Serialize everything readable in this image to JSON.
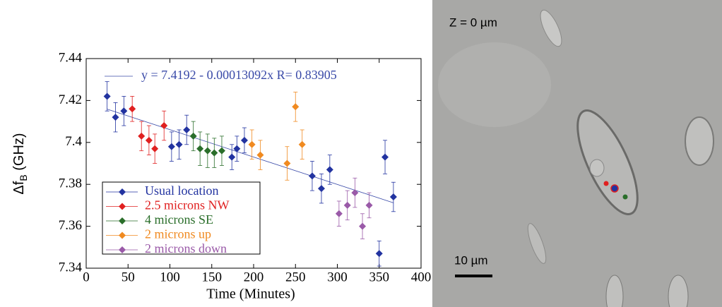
{
  "chart_data": {
    "type": "scatter",
    "y_label": "Δf",
    "y_label_sub": "B",
    "y_label_unit": "(GHz)",
    "x_label": "Time (Minutes)",
    "xlim": [
      0,
      400
    ],
    "xticks": [
      0,
      50,
      100,
      150,
      200,
      250,
      300,
      350,
      400
    ],
    "ylim": [
      7.34,
      7.44
    ],
    "yticks": [
      7.34,
      7.36,
      7.38,
      7.4,
      7.42,
      7.44
    ],
    "legend": "lower left",
    "fit": {
      "label": "y = 7.4192 - 0.00013092x   R= 0.83905",
      "color": "#3a4aa8",
      "x": [
        25,
        367
      ],
      "y": [
        7.4159,
        7.3712
      ]
    },
    "series": [
      {
        "name": "Usual location",
        "color": "#2233a0",
        "x": [
          25,
          35,
          45,
          102,
          111,
          120,
          174,
          180,
          189,
          270,
          281,
          291,
          350,
          357,
          367
        ],
        "values": [
          7.422,
          7.412,
          7.415,
          7.398,
          7.399,
          7.406,
          7.393,
          7.397,
          7.401,
          7.384,
          7.378,
          7.387,
          7.347,
          7.393,
          7.374
        ],
        "errors": [
          0.007,
          0.007,
          0.007,
          0.007,
          0.007,
          0.007,
          0.006,
          0.006,
          0.006,
          0.007,
          0.007,
          0.007,
          0.006,
          0.008,
          0.007
        ]
      },
      {
        "name": "2.5 microns NW",
        "color": "#e02020",
        "x": [
          55,
          66,
          75,
          82,
          93
        ],
        "values": [
          7.416,
          7.403,
          7.401,
          7.397,
          7.408
        ],
        "errors": [
          0.006,
          0.007,
          0.007,
          0.007,
          0.007
        ]
      },
      {
        "name": "4 microns SE",
        "color": "#2a6e2a",
        "x": [
          128,
          136,
          145,
          153,
          162
        ],
        "values": [
          7.403,
          7.397,
          7.396,
          7.395,
          7.396
        ],
        "errors": [
          0.007,
          0.008,
          0.008,
          0.007,
          0.007
        ]
      },
      {
        "name": "2 microns up",
        "color": "#f08a20",
        "x": [
          198,
          208,
          240,
          250,
          258
        ],
        "values": [
          7.399,
          7.394,
          7.39,
          7.417,
          7.399
        ],
        "errors": [
          0.007,
          0.007,
          0.008,
          0.007,
          0.007
        ]
      },
      {
        "name": "2 microns down",
        "color": "#9a5aa8",
        "x": [
          302,
          312,
          321,
          330,
          338
        ],
        "values": [
          7.366,
          7.37,
          7.376,
          7.36,
          7.37
        ],
        "errors": [
          0.006,
          0.007,
          0.007,
          0.006,
          0.006
        ]
      }
    ]
  },
  "image": {
    "z_label": "Z = 0 µm",
    "scale_label": "10 µm"
  }
}
